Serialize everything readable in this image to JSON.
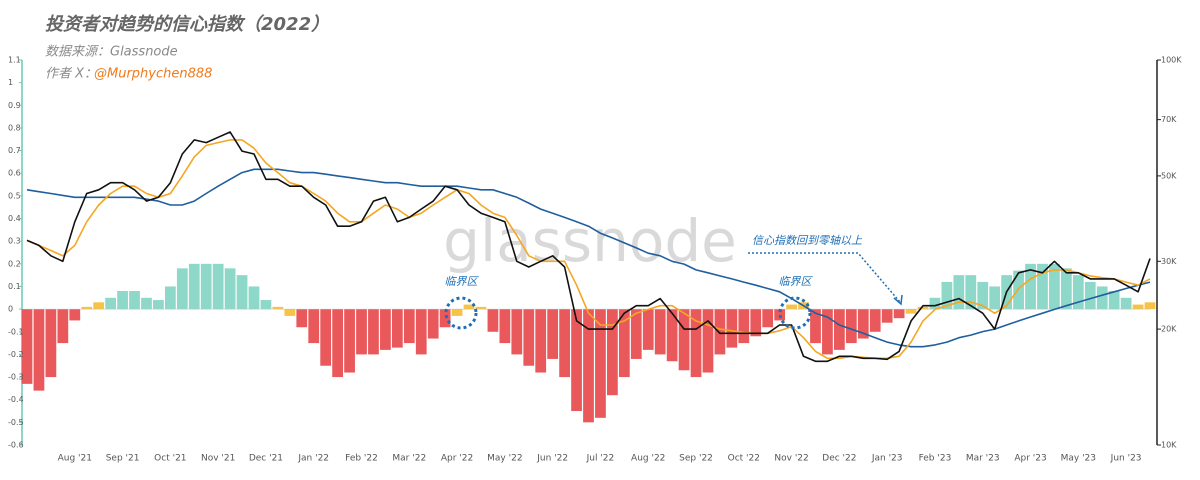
{
  "chart_data": {
    "type": "bar",
    "title": "投资者对趋势的信心指数（2022）",
    "source": "数据来源：Glassnode",
    "author_label": "作者 X：",
    "author": "@Murphychen888",
    "watermark": "glassnode",
    "annotations": [
      "临界区",
      "临界区",
      "信心指数回到零轴以上"
    ],
    "categories": [
      null,
      null,
      null,
      null,
      "Aug '21",
      null,
      null,
      null,
      "Sep '21",
      null,
      null,
      null,
      "Oct '21",
      null,
      null,
      null,
      "Nov '21",
      null,
      null,
      null,
      "Dec '21",
      null,
      null,
      null,
      "Jan '22",
      null,
      null,
      null,
      "Feb '22",
      null,
      null,
      null,
      "Mar '22",
      null,
      null,
      null,
      "Apr '22",
      null,
      null,
      null,
      "May '22",
      null,
      null,
      null,
      "Jun '22",
      null,
      null,
      null,
      "Jul '22",
      null,
      null,
      null,
      "Aug '22",
      null,
      null,
      null,
      "Sep '22",
      null,
      null,
      null,
      "Oct '22",
      null,
      null,
      null,
      "Nov '22",
      null,
      null,
      null,
      "Dec '22",
      null,
      null,
      null,
      "Jan '23",
      null,
      null,
      null,
      "Feb '23",
      null,
      null,
      null,
      "Mar '23",
      null,
      null,
      null,
      "Apr '23",
      null,
      null,
      null,
      "May '23",
      null,
      null,
      null,
      "Jun '23",
      null,
      null
    ],
    "series": [
      {
        "type": "bar",
        "values": [
          -0.33,
          -0.36,
          -0.3,
          -0.15,
          -0.05,
          0.01,
          0.03,
          0.05,
          0.08,
          0.08,
          0.05,
          0.04,
          0.1,
          0.18,
          0.2,
          0.2,
          0.2,
          0.18,
          0.15,
          0.1,
          0.04,
          0.01,
          -0.03,
          -0.08,
          -0.15,
          -0.25,
          -0.3,
          -0.28,
          -0.2,
          -0.2,
          -0.18,
          -0.17,
          -0.15,
          -0.2,
          -0.13,
          -0.08,
          -0.03,
          0.02,
          0.01,
          -0.1,
          -0.15,
          -0.2,
          -0.25,
          -0.28,
          -0.22,
          -0.3,
          -0.45,
          -0.5,
          -0.48,
          -0.38,
          -0.3,
          -0.22,
          -0.18,
          -0.2,
          -0.23,
          -0.27,
          -0.3,
          -0.28,
          -0.2,
          -0.17,
          -0.15,
          -0.12,
          -0.08,
          -0.05,
          0.02,
          0.03,
          -0.15,
          -0.2,
          -0.18,
          -0.15,
          -0.13,
          -0.1,
          -0.06,
          -0.04,
          -0.02,
          0.01,
          0.05,
          0.12,
          0.15,
          0.15,
          0.12,
          0.1,
          0.15,
          0.17,
          0.2,
          0.2,
          0.2,
          0.18,
          0.15,
          0.12,
          0.1,
          0.08,
          0.05,
          0.02,
          0.03
        ],
        "colors": [
          "#e9585b",
          "#e9585b",
          "#e9585b",
          "#e9585b",
          "#e9585b",
          "#f6c344",
          "#f6c344",
          "#8dd8c9",
          "#8dd8c9",
          "#8dd8c9",
          "#8dd8c9",
          "#8dd8c9",
          "#8dd8c9",
          "#8dd8c9",
          "#8dd8c9",
          "#8dd8c9",
          "#8dd8c9",
          "#8dd8c9",
          "#8dd8c9",
          "#8dd8c9",
          "#8dd8c9",
          "#f6c344",
          "#f6c344",
          "#e9585b",
          "#e9585b",
          "#e9585b",
          "#e9585b",
          "#e9585b",
          "#e9585b",
          "#e9585b",
          "#e9585b",
          "#e9585b",
          "#e9585b",
          "#e9585b",
          "#e9585b",
          "#e9585b",
          "#f6c344",
          "#f6c344",
          "#f6c344",
          "#e9585b",
          "#e9585b",
          "#e9585b",
          "#e9585b",
          "#e9585b",
          "#e9585b",
          "#e9585b",
          "#e9585b",
          "#e9585b",
          "#e9585b",
          "#e9585b",
          "#e9585b",
          "#e9585b",
          "#e9585b",
          "#e9585b",
          "#e9585b",
          "#e9585b",
          "#e9585b",
          "#e9585b",
          "#e9585b",
          "#e9585b",
          "#e9585b",
          "#e9585b",
          "#e9585b",
          "#e9585b",
          "#f6c344",
          "#f6c344",
          "#e9585b",
          "#e9585b",
          "#e9585b",
          "#e9585b",
          "#e9585b",
          "#e9585b",
          "#e9585b",
          "#e9585b",
          "#f6c344",
          "#f6c344",
          "#8dd8c9",
          "#8dd8c9",
          "#8dd8c9",
          "#8dd8c9",
          "#8dd8c9",
          "#8dd8c9",
          "#8dd8c9",
          "#8dd8c9",
          "#8dd8c9",
          "#8dd8c9",
          "#8dd8c9",
          "#8dd8c9",
          "#8dd8c9",
          "#8dd8c9",
          "#8dd8c9",
          "#8dd8c9",
          "#8dd8c9",
          "#f6c344",
          "#f6c344"
        ]
      },
      {
        "type": "line",
        "axis": "y2",
        "color": "#111111",
        "values": [
          34,
          33,
          31,
          30,
          38,
          45,
          46,
          48,
          48,
          46,
          43,
          44,
          48,
          57,
          62,
          61,
          63,
          65,
          58,
          57,
          49,
          49,
          47,
          47,
          44,
          42,
          37,
          37,
          38,
          43,
          44,
          38,
          39,
          41,
          43,
          47,
          46,
          42,
          40,
          39,
          38,
          30,
          29,
          30,
          31,
          29,
          21,
          20,
          20,
          20,
          22,
          23,
          23,
          24,
          22,
          20,
          20,
          21,
          19.5,
          19.5,
          19.5,
          19.5,
          19.5,
          20.5,
          20.5,
          17,
          16.5,
          16.5,
          17,
          17,
          16.8,
          16.8,
          16.7,
          17.5,
          21,
          23,
          23,
          23.5,
          24,
          23,
          22,
          20,
          25,
          28,
          28.5,
          28,
          30,
          28,
          28,
          27,
          27,
          27,
          26,
          25,
          30.5
        ]
      },
      {
        "type": "line",
        "axis": "y2",
        "color": "#f5a623",
        "values": [
          34,
          33,
          32,
          31,
          33,
          38,
          42,
          45,
          47,
          47,
          45,
          44,
          45,
          50,
          56,
          60,
          61,
          62,
          62,
          59,
          54,
          51,
          48,
          47,
          45,
          43,
          40,
          38,
          38,
          40,
          42,
          41,
          39,
          40,
          42,
          44,
          46,
          45,
          42,
          40,
          39,
          35,
          31,
          30,
          30,
          30,
          26,
          22,
          20.5,
          20.5,
          21,
          22,
          22.5,
          23,
          23,
          22,
          21,
          20.5,
          20,
          19.8,
          19.6,
          19.5,
          19.5,
          19.8,
          20.3,
          19,
          17.5,
          16.8,
          16.8,
          17,
          16.9,
          16.8,
          16.8,
          17,
          18.5,
          21,
          22.5,
          23,
          23.5,
          23.5,
          23,
          22,
          23,
          25.5,
          27,
          28,
          28.5,
          28.5,
          28,
          27.5,
          27.2,
          27,
          26.5,
          26,
          27
        ]
      },
      {
        "type": "line",
        "axis": "y2",
        "color": "#1f5f9e",
        "values": [
          46,
          45.5,
          45,
          44.5,
          44,
          44,
          44,
          44,
          44,
          44,
          43.5,
          43,
          42,
          42,
          43,
          45,
          47,
          49,
          51,
          52,
          52,
          52,
          51.5,
          51,
          51,
          50.5,
          50,
          49.5,
          49,
          48.5,
          48,
          48,
          47.5,
          47,
          47,
          47,
          47,
          46.5,
          46,
          46,
          45,
          44,
          42.5,
          41,
          40,
          39,
          38,
          37,
          35.5,
          34.5,
          33.5,
          32.5,
          31.5,
          31,
          30,
          29.5,
          28.5,
          28,
          27.5,
          27,
          26.5,
          26,
          25.5,
          25,
          24,
          23,
          22,
          21.5,
          20.5,
          20,
          19.5,
          19,
          18.5,
          18.2,
          18,
          18,
          18.2,
          18.5,
          19,
          19.3,
          19.7,
          20,
          20.5,
          21,
          21.5,
          22,
          22.5,
          23,
          23.5,
          24,
          24.5,
          25,
          25.5,
          26,
          26.5
        ]
      }
    ],
    "ylim": [
      -0.6,
      1.1
    ],
    "yticks": [
      -0.6,
      -0.5,
      -0.4,
      -0.3,
      -0.2,
      -0.1,
      0,
      0.1,
      0.2,
      0.3,
      0.4,
      0.5,
      0.6,
      0.7,
      0.8,
      0.9,
      1,
      1.1
    ],
    "y2lim": [
      10,
      100
    ],
    "y2_log": true,
    "y2ticks": [
      {
        "value": 10,
        "label": "10K"
      },
      {
        "value": 20,
        "label": "20K"
      },
      {
        "value": 30,
        "label": "30K"
      },
      {
        "value": 50,
        "label": "50K"
      },
      {
        "value": 70,
        "label": "70K"
      },
      {
        "value": 100,
        "label": "100K"
      }
    ]
  }
}
